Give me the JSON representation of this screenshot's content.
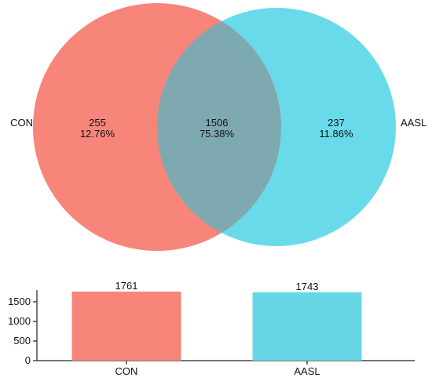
{
  "chart_data": [
    {
      "type": "venn",
      "sets": [
        {
          "name": "CON",
          "color": "#f7857a",
          "only_count": "255",
          "only_percent": "12.76%"
        },
        {
          "name": "AASL",
          "color": "#4fd3e6",
          "only_count": "237",
          "only_percent": "11.86%"
        }
      ],
      "intersection": {
        "count": "1506",
        "percent": "75.38%",
        "color": "#7fa9b0"
      }
    },
    {
      "type": "bar",
      "categories": [
        "CON",
        "AASL"
      ],
      "values": [
        1761,
        1743
      ],
      "value_labels": [
        "1761",
        "1743"
      ],
      "colors": [
        "#f7857a",
        "#67d7e5"
      ],
      "ylim": [
        0,
        1800
      ],
      "yticks": [
        0,
        500,
        1000,
        1500
      ],
      "ytick_labels": [
        "0",
        "500",
        "1000",
        "1500"
      ],
      "title": "",
      "xlabel": "",
      "ylabel": ""
    }
  ]
}
